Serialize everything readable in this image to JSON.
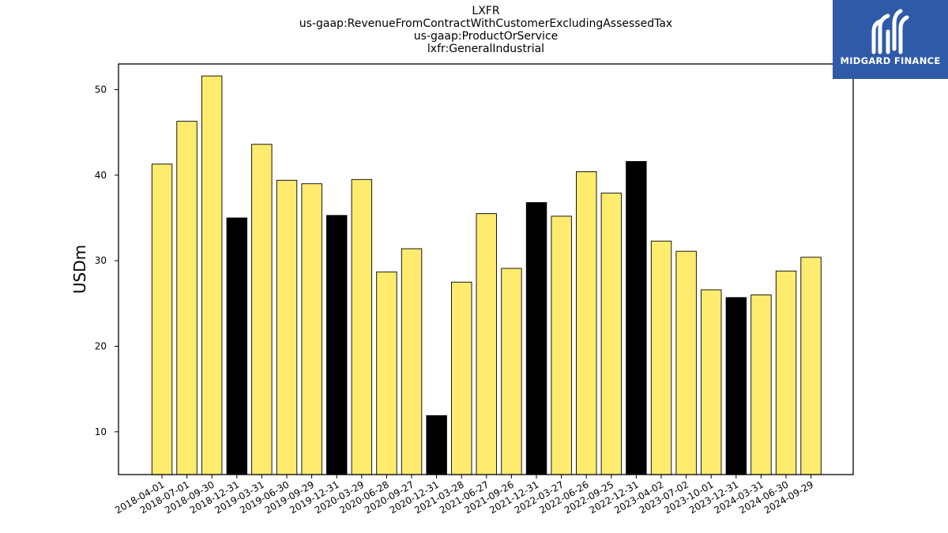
{
  "title_lines": [
    "LXFR",
    "us-gaap:RevenueFromContractWithCustomerExcludingAssessedTax",
    "us-gaap:ProductOrService",
    "lxfr:GeneralIndustrial"
  ],
  "logo": {
    "text": "MIDGARD FINANCE",
    "background": "#2f5aa8"
  },
  "chart_data": {
    "type": "bar",
    "ylabel": "USDm",
    "xlabel": "",
    "ylim": [
      5,
      53
    ],
    "yticks": [
      10,
      20,
      30,
      40,
      50
    ],
    "categories": [
      "2018-04-01",
      "2018-07-01",
      "2018-09-30",
      "2018-12-31",
      "2019-03-31",
      "2019-06-30",
      "2019-09-29",
      "2019-12-31",
      "2020-03-29",
      "2020-06-28",
      "2020-09-27",
      "2020-12-31",
      "2021-03-28",
      "2021-06-27",
      "2021-09-26",
      "2021-12-31",
      "2022-03-27",
      "2022-06-26",
      "2022-09-25",
      "2022-12-31",
      "2023-04-02",
      "2023-07-02",
      "2023-10-01",
      "2023-12-31",
      "2024-03-31",
      "2024-06-30",
      "2024-09-29"
    ],
    "values": [
      41.3,
      46.3,
      51.6,
      35.0,
      43.6,
      39.4,
      39.0,
      35.3,
      39.5,
      28.7,
      31.4,
      11.9,
      27.5,
      35.5,
      29.1,
      36.8,
      35.2,
      40.4,
      37.9,
      41.6,
      32.3,
      31.1,
      26.6,
      25.7,
      26.0,
      28.8,
      30.4
    ],
    "highlight": [
      false,
      false,
      false,
      true,
      false,
      false,
      false,
      true,
      false,
      false,
      false,
      true,
      false,
      false,
      false,
      true,
      false,
      false,
      false,
      true,
      false,
      false,
      false,
      true,
      false,
      false,
      false
    ],
    "colors": {
      "default": "#ffeb6e",
      "highlight": "#000000",
      "edge": "#000000"
    },
    "grid": false,
    "legend": "none"
  }
}
